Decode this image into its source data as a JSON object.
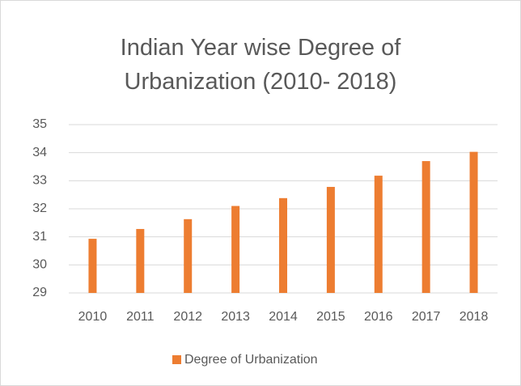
{
  "chart_data": {
    "type": "bar",
    "title": "Indian Year wise Degree of Urbanization (2010- 2018)",
    "categories": [
      "2010",
      "2011",
      "2012",
      "2013",
      "2014",
      "2015",
      "2016",
      "2017",
      "2018"
    ],
    "series": [
      {
        "name": "Degree of Urbanization",
        "color": "#ed7d31",
        "values": [
          30.93,
          31.28,
          31.63,
          32.1,
          32.38,
          32.78,
          33.18,
          33.7,
          34.03
        ]
      }
    ],
    "ylim": [
      29,
      35
    ],
    "yticks": [
      29,
      30,
      31,
      32,
      33,
      34,
      35
    ],
    "grid": true,
    "legend": "bottom"
  }
}
